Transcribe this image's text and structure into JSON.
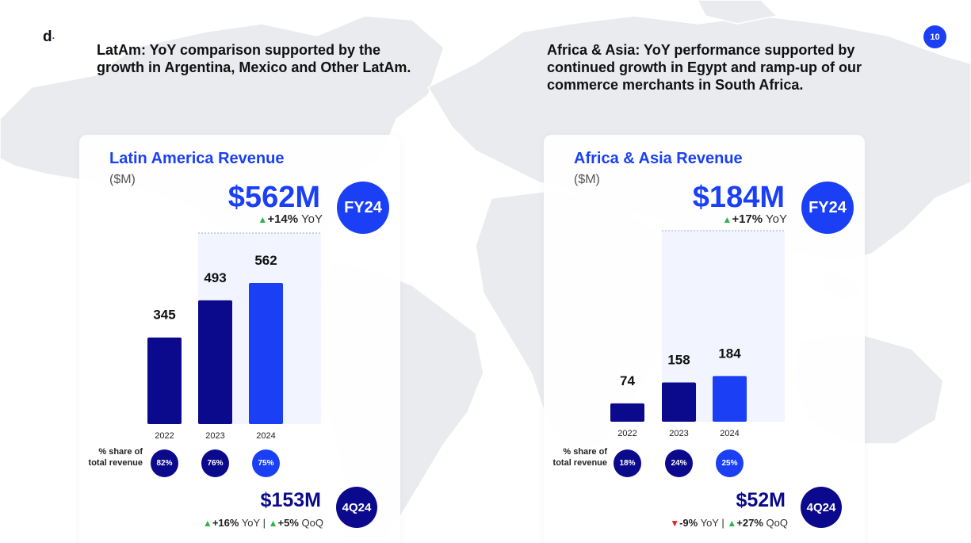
{
  "logo": {
    "mark": "d",
    "dot": "·"
  },
  "page_number": "10",
  "headlines": {
    "left": "LatAm: YoY comparison supported by the growth in Argentina, Mexico and Other LatAm.",
    "right": "Africa & Asia: YoY performance supported by continued growth in Egypt and ramp-up of our commerce merchants in South Africa."
  },
  "colors": {
    "accent": "#1a3ff5",
    "dark_bar": "#0b0a8c",
    "up_arrow": "#2eb34e",
    "down_arrow": "#e0242a"
  },
  "panels": [
    {
      "title": "Latin America Revenue",
      "unit": "($M)",
      "fy_value": "$562M",
      "fy_change_arrow": "▲",
      "fy_change": "+14%",
      "fy_change_suffix": "YoY",
      "fy_badge": "FY24",
      "share_label": "% share of total revenue",
      "shares": [
        "82%",
        "76%",
        "75%"
      ],
      "q_value": "$153M",
      "q_yoy_arrow": "▲",
      "q_yoy": "+16%",
      "q_yoy_suffix": "YoY",
      "q_separator": "|",
      "q_qoq_arrow": "▲",
      "q_qoq": "+5%",
      "q_qoq_suffix": "QoQ",
      "q_badge": "4Q24"
    },
    {
      "title": "Africa & Asia Revenue",
      "unit": "($M)",
      "fy_value": "$184M",
      "fy_change_arrow": "▲",
      "fy_change": "+17%",
      "fy_change_suffix": "YoY",
      "fy_badge": "FY24",
      "share_label": "% share of total revenue",
      "shares": [
        "18%",
        "24%",
        "25%"
      ],
      "q_value": "$52M",
      "q_yoy_arrow": "▼",
      "q_yoy": "-9%",
      "q_yoy_suffix": "YoY",
      "q_separator": "|",
      "q_qoq_arrow": "▲",
      "q_qoq": "+27%",
      "q_qoq_suffix": "QoQ",
      "q_badge": "4Q24"
    }
  ],
  "chart_data": [
    {
      "type": "bar",
      "title": "Latin America Revenue",
      "ylabel": "($M)",
      "categories": [
        "2022",
        "2023",
        "2024"
      ],
      "values": [
        345,
        493,
        562
      ],
      "ylim": [
        0,
        562
      ],
      "data_labels": true,
      "grid": false
    },
    {
      "type": "bar",
      "title": "Africa & Asia Revenue",
      "ylabel": "($M)",
      "categories": [
        "2022",
        "2023",
        "2024"
      ],
      "values": [
        74,
        158,
        184
      ],
      "ylim": [
        0,
        562
      ],
      "data_labels": true,
      "grid": false
    }
  ]
}
